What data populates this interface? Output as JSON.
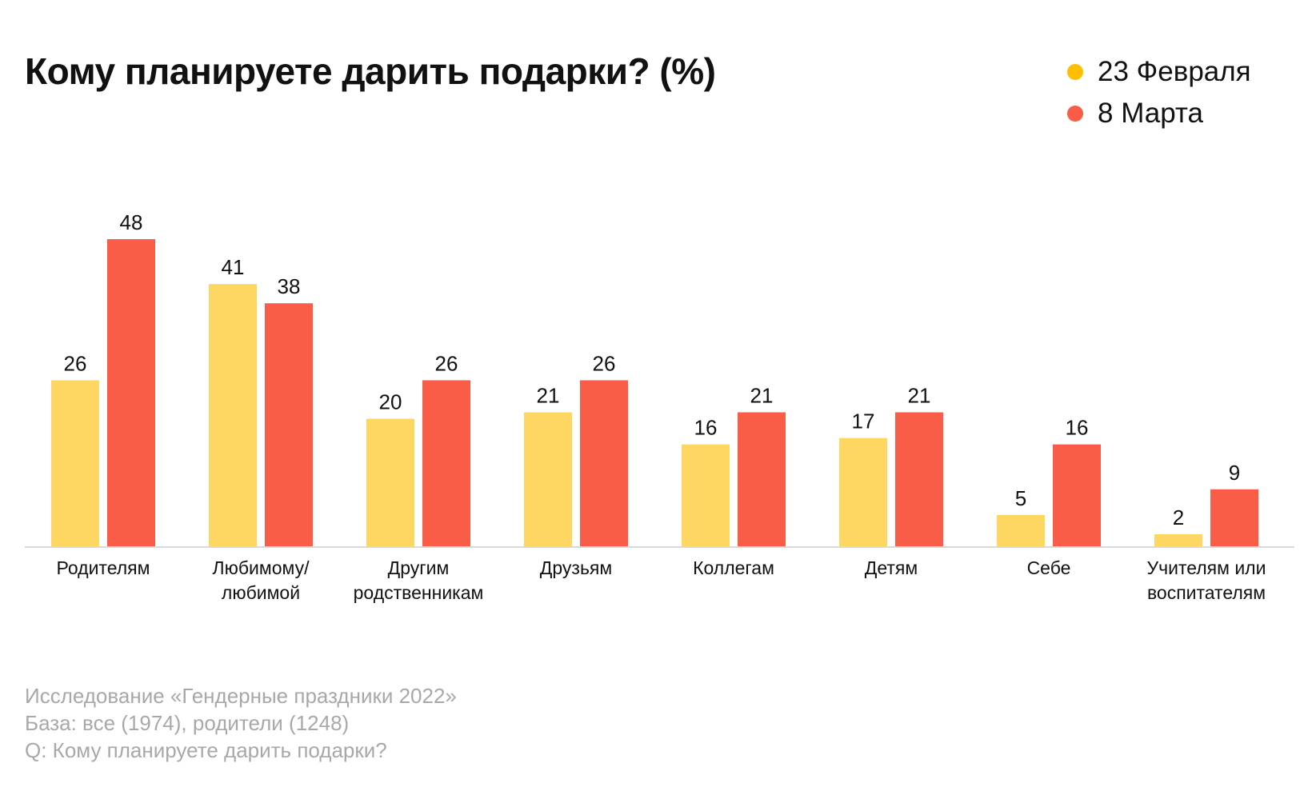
{
  "chart_data": {
    "type": "bar",
    "title": "Кому планируете дарить подарки? (%)",
    "categories": [
      [
        "Родителям"
      ],
      [
        "Любимому/",
        "любимой"
      ],
      [
        "Другим",
        "родственникам"
      ],
      [
        "Друзьям"
      ],
      [
        "Коллегам"
      ],
      [
        "Детям"
      ],
      [
        "Себе"
      ],
      [
        "Учителям или",
        "воспитателям"
      ]
    ],
    "series": [
      {
        "name": "23 Февраля",
        "color": "#FED762",
        "values": [
          26,
          41,
          20,
          21,
          16,
          17,
          5,
          2
        ]
      },
      {
        "name": "8 Марта",
        "color": "#F95D48",
        "values": [
          48,
          38,
          26,
          26,
          21,
          21,
          16,
          9
        ]
      }
    ],
    "ylim": [
      0,
      48
    ],
    "legend_position": "top-right",
    "grid": false
  },
  "legend": {
    "dot_colors": [
      "#FFBF00",
      "#F95D48"
    ]
  },
  "footnotes": [
    "Исследование «Гендерные праздники 2022»",
    "База: все (1974), родители (1248)",
    "Q: Кому планируете дарить подарки?"
  ]
}
